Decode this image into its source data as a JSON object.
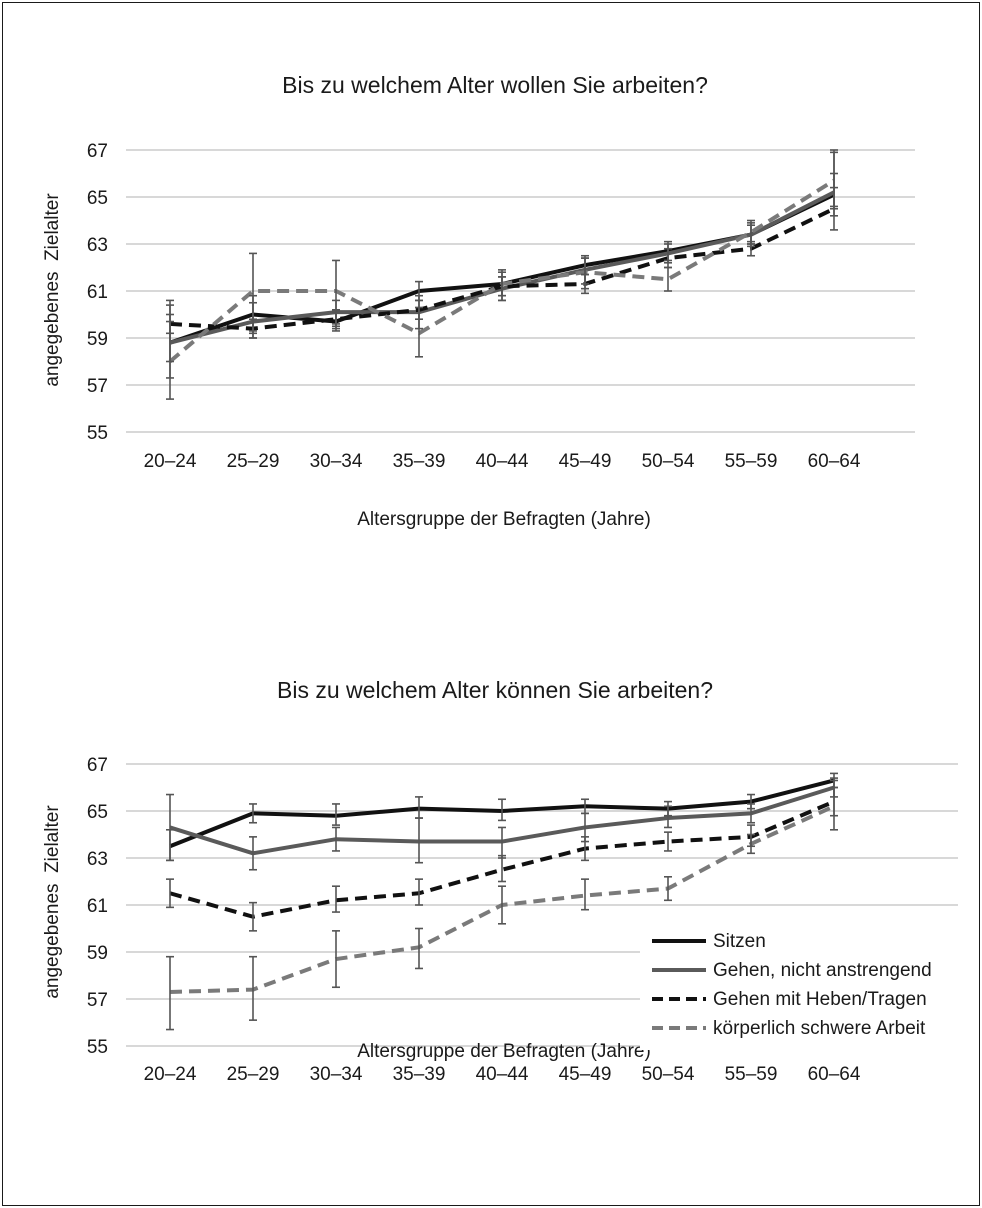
{
  "chart_data": [
    {
      "type": "line",
      "title": "Bis zu welchem Alter wollen Sie arbeiten?",
      "xlabel": "Altersgruppe der Befragten (Jahre)",
      "ylabel": "angegebenes  Zielalter",
      "categories": [
        "20–24",
        "25–29",
        "30–34",
        "35–39",
        "40–44",
        "45–49",
        "50–54",
        "55–59",
        "60–64"
      ],
      "ylim": [
        55,
        67
      ],
      "yticks": [
        "55",
        "57",
        "59",
        "61",
        "63",
        "65",
        "67"
      ],
      "grid": true,
      "legend": "none",
      "series": [
        {
          "name": "Sitzen",
          "color": "#111111",
          "dash": "solid",
          "values": [
            58.8,
            60.0,
            59.7,
            61.0,
            61.3,
            62.1,
            62.7,
            63.4,
            65.1
          ],
          "err_low": [
            58.0,
            59.2,
            59.3,
            60.6,
            60.8,
            61.7,
            62.3,
            63.0,
            64.2
          ],
          "err_high": [
            59.7,
            60.8,
            60.1,
            61.4,
            61.8,
            62.5,
            63.1,
            63.8,
            67.0
          ]
        },
        {
          "name": "Gehen, nicht anstrengend",
          "color": "#5a5a5a",
          "dash": "solid",
          "values": [
            58.8,
            59.7,
            60.1,
            60.1,
            61.1,
            61.9,
            62.6,
            63.4,
            65.2
          ],
          "err_low": [
            57.3,
            59.0,
            59.5,
            59.4,
            60.6,
            61.3,
            62.2,
            62.9,
            64.5
          ],
          "err_high": [
            60.4,
            60.5,
            60.6,
            60.8,
            61.6,
            62.4,
            63.0,
            63.9,
            66.0
          ]
        },
        {
          "name": "Gehen mit Heben/Tragen",
          "color": "#111111",
          "dash": "dashed",
          "values": [
            59.6,
            59.4,
            59.8,
            60.2,
            61.2,
            61.3,
            62.4,
            62.8,
            64.5
          ],
          "err_low": [
            59.2,
            59.0,
            59.4,
            59.8,
            60.8,
            60.9,
            62.0,
            62.5,
            63.6
          ],
          "err_high": [
            60.0,
            59.8,
            60.2,
            60.6,
            61.6,
            61.7,
            62.8,
            63.1,
            65.4
          ]
        },
        {
          "name": "körperlich schwere Arbeit",
          "color": "#7a7a7a",
          "dash": "dashed",
          "values": [
            58.0,
            61.0,
            61.0,
            59.2,
            61.3,
            61.8,
            61.5,
            63.5,
            65.7
          ],
          "err_low": [
            56.4,
            59.3,
            59.6,
            58.2,
            60.6,
            61.1,
            61.0,
            63.0,
            64.6
          ],
          "err_high": [
            60.6,
            62.6,
            62.3,
            60.3,
            61.9,
            62.4,
            62.0,
            64.0,
            66.9
          ]
        }
      ]
    },
    {
      "type": "line",
      "title": "Bis zu welchem Alter können Sie arbeiten?",
      "xlabel": "Altersgruppe der Befragten (Jahre)",
      "ylabel": "angegebenes  Zielalter",
      "categories": [
        "20–24",
        "25–29",
        "30–34",
        "35–39",
        "40–44",
        "45–49",
        "50–54",
        "55–59",
        "60–64"
      ],
      "ylim": [
        55,
        67
      ],
      "yticks": [
        "55",
        "57",
        "59",
        "61",
        "63",
        "65",
        "67"
      ],
      "grid": true,
      "legend": "bottom-right",
      "series": [
        {
          "name": "Sitzen",
          "color": "#111111",
          "dash": "solid",
          "values": [
            63.5,
            64.9,
            64.8,
            65.1,
            65.0,
            65.2,
            65.1,
            65.4,
            66.3
          ],
          "err_low": [
            62.9,
            64.5,
            64.4,
            64.7,
            64.6,
            64.9,
            64.8,
            65.1,
            66.0
          ],
          "err_high": [
            64.2,
            65.3,
            65.3,
            65.6,
            65.5,
            65.5,
            65.4,
            65.7,
            66.6
          ]
        },
        {
          "name": "Gehen, nicht anstrengend",
          "color": "#5a5a5a",
          "dash": "solid",
          "values": [
            64.3,
            63.2,
            63.8,
            63.7,
            63.7,
            64.3,
            64.7,
            64.9,
            66.0
          ],
          "err_low": [
            62.9,
            62.5,
            63.3,
            62.8,
            63.0,
            63.7,
            64.3,
            64.5,
            65.6
          ],
          "err_high": [
            65.7,
            63.9,
            64.3,
            64.7,
            64.3,
            64.9,
            65.2,
            65.3,
            66.4
          ]
        },
        {
          "name": "Gehen mit Heben/Tragen",
          "color": "#111111",
          "dash": "dashed",
          "values": [
            61.5,
            60.5,
            61.2,
            61.5,
            62.5,
            63.4,
            63.7,
            63.9,
            65.4
          ],
          "err_low": [
            60.9,
            59.9,
            60.7,
            61.0,
            62.0,
            62.9,
            63.3,
            63.5,
            64.8
          ],
          "err_high": [
            62.1,
            61.1,
            61.8,
            62.1,
            63.1,
            63.9,
            64.1,
            64.4,
            66.0
          ]
        },
        {
          "name": "körperlich schwere Arbeit",
          "color": "#7a7a7a",
          "dash": "dashed",
          "values": [
            57.3,
            57.4,
            58.7,
            59.2,
            61.0,
            61.4,
            61.7,
            63.6,
            65.2
          ],
          "err_low": [
            55.7,
            56.1,
            57.5,
            58.3,
            60.2,
            60.8,
            61.2,
            63.2,
            64.2
          ],
          "err_high": [
            58.8,
            58.8,
            59.9,
            60.0,
            61.8,
            62.1,
            62.2,
            64.0,
            66.3
          ]
        }
      ]
    }
  ]
}
